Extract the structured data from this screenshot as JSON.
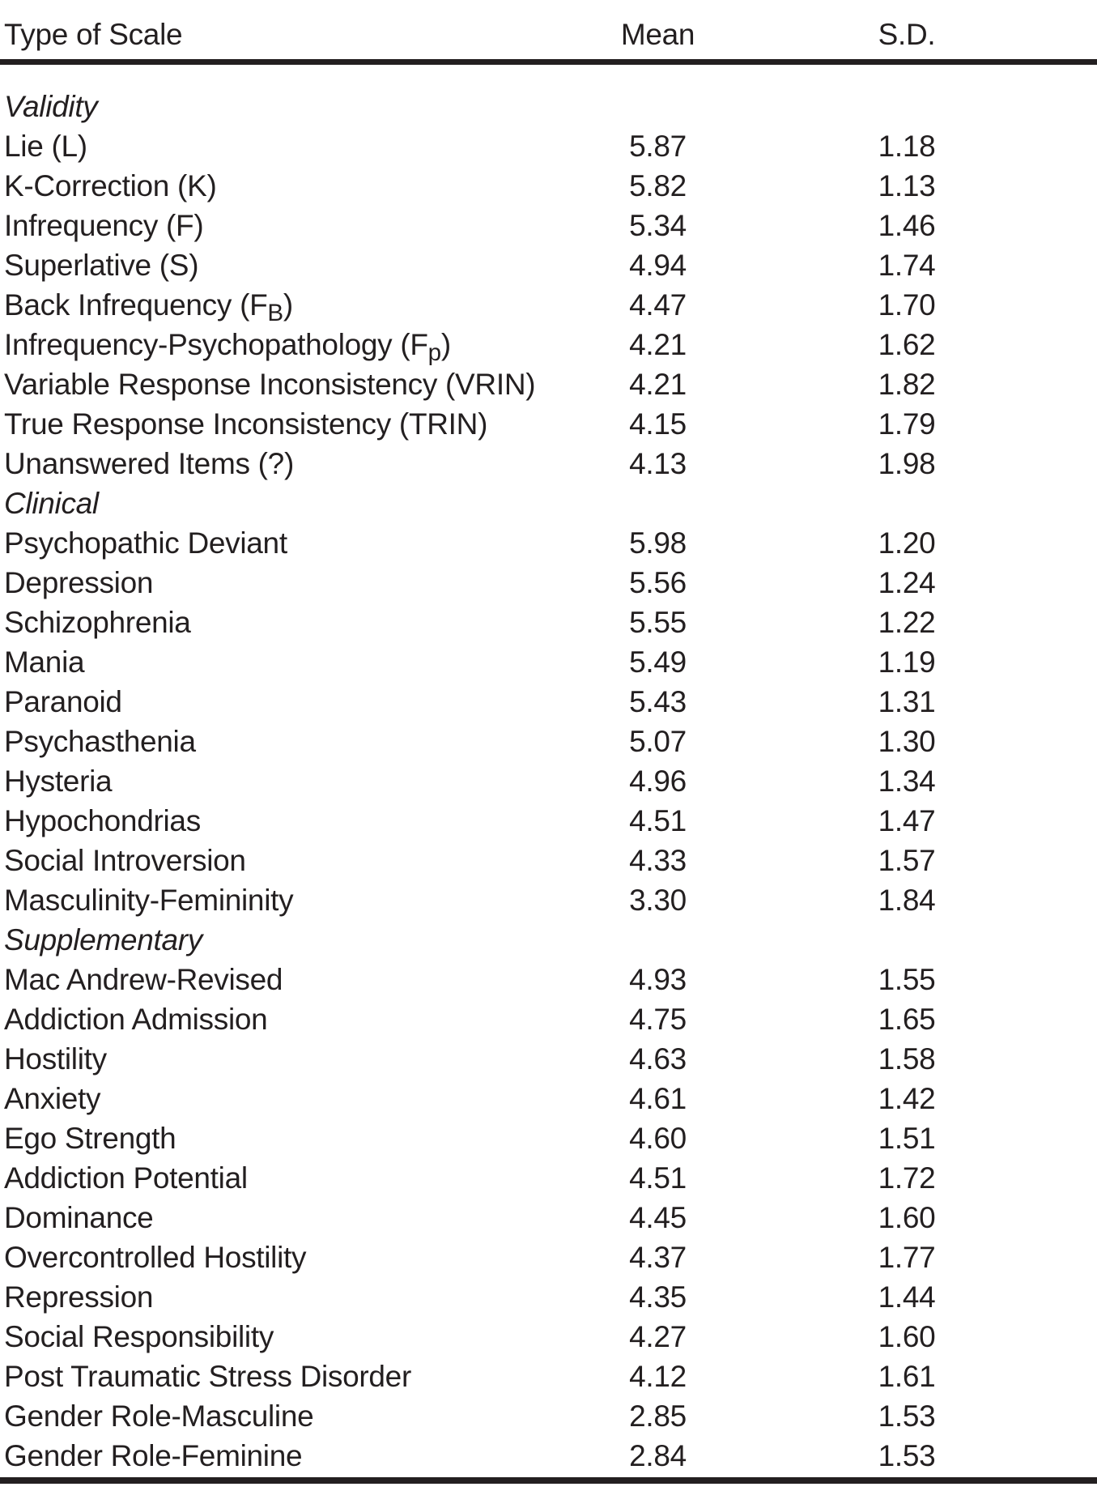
{
  "table": {
    "columns": [
      "Type of Scale",
      "Mean",
      "S.D."
    ],
    "sections": [
      {
        "name": "Validity",
        "rows": [
          {
            "label": "Lie (L)",
            "mean": "5.87",
            "sd": "1.18"
          },
          {
            "label": "K-Correction (K)",
            "mean": "5.82",
            "sd": "1.13"
          },
          {
            "label": "Infrequency (F)",
            "mean": "5.34",
            "sd": "1.46"
          },
          {
            "label": "Superlative (S)",
            "mean": "4.94",
            "sd": "1.74"
          },
          {
            "label": "Back Infrequency (F",
            "sub": "B",
            "label_after": ")",
            "mean": "4.47",
            "sd": "1.70"
          },
          {
            "label": "Infrequency-Psychopathology (F",
            "sub": "p",
            "label_after": ")",
            "mean": "4.21",
            "sd": "1.62"
          },
          {
            "label": "Variable Response Inconsistency (VRIN)",
            "mean": "4.21",
            "sd": "1.82"
          },
          {
            "label": "True Response Inconsistency (TRIN)",
            "mean": "4.15",
            "sd": "1.79"
          },
          {
            "label": "Unanswered Items (?)",
            "mean": "4.13",
            "sd": "1.98"
          }
        ]
      },
      {
        "name": "Clinical",
        "rows": [
          {
            "label": "Psychopathic Deviant",
            "mean": "5.98",
            "sd": "1.20"
          },
          {
            "label": "Depression",
            "mean": "5.56",
            "sd": "1.24"
          },
          {
            "label": "Schizophrenia",
            "mean": "5.55",
            "sd": "1.22"
          },
          {
            "label": "Mania",
            "mean": "5.49",
            "sd": "1.19"
          },
          {
            "label": "Paranoid",
            "mean": "5.43",
            "sd": "1.31"
          },
          {
            "label": "Psychasthenia",
            "mean": "5.07",
            "sd": "1.30"
          },
          {
            "label": "Hysteria",
            "mean": "4.96",
            "sd": "1.34"
          },
          {
            "label": "Hypochondrias",
            "mean": "4.51",
            "sd": "1.47"
          },
          {
            "label": "Social Introversion",
            "mean": "4.33",
            "sd": "1.57"
          },
          {
            "label": "Masculinity-Femininity",
            "mean": "3.30",
            "sd": "1.84"
          }
        ]
      },
      {
        "name": "Supplementary",
        "rows": [
          {
            "label": "Mac Andrew-Revised",
            "mean": "4.93",
            "sd": "1.55"
          },
          {
            "label": "Addiction Admission",
            "mean": "4.75",
            "sd": "1.65"
          },
          {
            "label": "Hostility",
            "mean": "4.63",
            "sd": "1.58"
          },
          {
            "label": "Anxiety",
            "mean": "4.61",
            "sd": "1.42"
          },
          {
            "label": "Ego Strength",
            "mean": "4.60",
            "sd": "1.51"
          },
          {
            "label": "Addiction Potential",
            "mean": "4.51",
            "sd": "1.72"
          },
          {
            "label": "Dominance",
            "mean": "4.45",
            "sd": "1.60"
          },
          {
            "label": "Overcontrolled Hostility",
            "mean": "4.37",
            "sd": "1.77"
          },
          {
            "label": "Repression",
            "mean": "4.35",
            "sd": "1.44"
          },
          {
            "label": "Social Responsibility",
            "mean": "4.27",
            "sd": "1.60"
          },
          {
            "label": "Post Traumatic Stress Disorder",
            "mean": "4.12",
            "sd": "1.61"
          },
          {
            "label": "Gender Role-Masculine",
            "mean": "2.85",
            "sd": "1.53"
          },
          {
            "label": "Gender Role-Feminine",
            "mean": "2.84",
            "sd": "1.53"
          }
        ]
      }
    ],
    "colors": {
      "ink": "#231f20",
      "background": "#ffffff"
    }
  }
}
